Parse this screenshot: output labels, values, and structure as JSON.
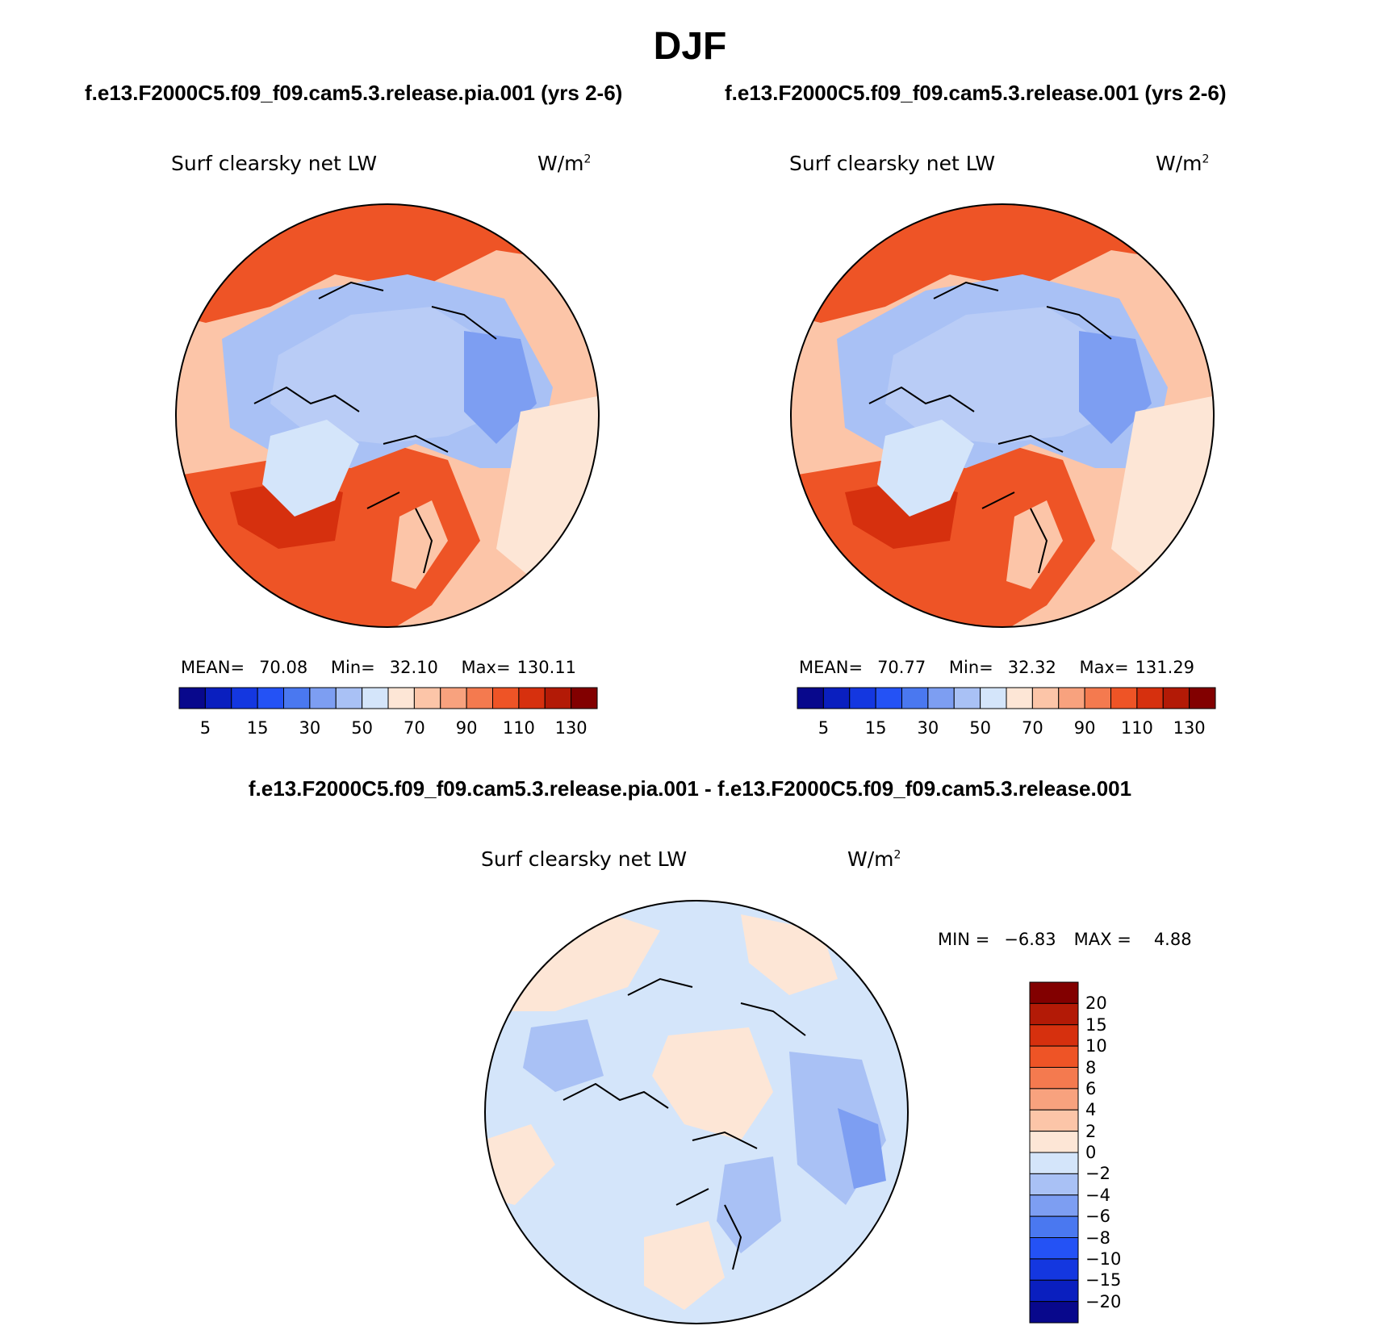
{
  "figure": {
    "season": "DJF",
    "case_test": "f.e13.F2000C5.f09_f09.cam5.3.release.pia.001 (yrs 2-6)",
    "case_control": "f.e13.F2000C5.f09_f09.cam5.3.release.001 (yrs 2-6)",
    "diff_title": "f.e13.F2000C5.f09_f09.cam5.3.release.pia.001 - f.e13.F2000C5.f09_f09.cam5.3.release.001"
  },
  "panels": {
    "left": {
      "variable": "Surf clearsky net LW",
      "units": "W/m",
      "units_exp": "2",
      "mean_label": "MEAN=",
      "mean": "70.08",
      "min_label": "Min=",
      "min": "32.10",
      "max_label": "Max=",
      "max": "130.11"
    },
    "right": {
      "variable": "Surf clearsky net LW",
      "units": "W/m",
      "units_exp": "2",
      "mean_label": "MEAN=",
      "mean": "70.77",
      "min_label": "Min=",
      "min": "32.32",
      "max_label": "Max=",
      "max": "131.29"
    },
    "diff": {
      "variable": "Surf clearsky net LW",
      "units": "W/m",
      "units_exp": "2",
      "min_label": "MIN =",
      "min": "−6.83",
      "max_label": "MAX =",
      "max": "4.88"
    }
  },
  "colorbar_abs": {
    "colors": [
      "#08088c",
      "#0a1fbf",
      "#1437e0",
      "#2452f5",
      "#4a78f0",
      "#7d9ef2",
      "#a9c1f5",
      "#d4e5fa",
      "#fde6d6",
      "#fcc5a8",
      "#f8a27e",
      "#f47a4f",
      "#ee5426",
      "#d6300e",
      "#b31a06",
      "#820000"
    ],
    "tick_labels": [
      "5",
      "15",
      "30",
      "50",
      "70",
      "90",
      "110",
      "130"
    ]
  },
  "colorbar_diff": {
    "colors": [
      "#820000",
      "#b31a06",
      "#d6300e",
      "#ee5426",
      "#f47a4f",
      "#f8a27e",
      "#fcc5a8",
      "#fde6d6",
      "#d4e5fa",
      "#a9c1f5",
      "#7d9ef2",
      "#4a78f0",
      "#2452f5",
      "#1437e0",
      "#0a1fbf",
      "#08088c"
    ],
    "tick_labels": [
      "20",
      "15",
      "10",
      "8",
      "6",
      "4",
      "2",
      "0",
      "−2",
      "−4",
      "−6",
      "−8",
      "−10",
      "−15",
      "−20"
    ]
  },
  "map_colors": {
    "warm_dark": "#d6300e",
    "warm": "#ee5426",
    "warm_light": "#f8a27e",
    "warm_pale": "#fcc5a8",
    "neutral_pale": "#fde6d6",
    "cool_pale": "#d4e5fa",
    "cool": "#a9c1f5",
    "cool_mid": "#7d9ef2"
  }
}
